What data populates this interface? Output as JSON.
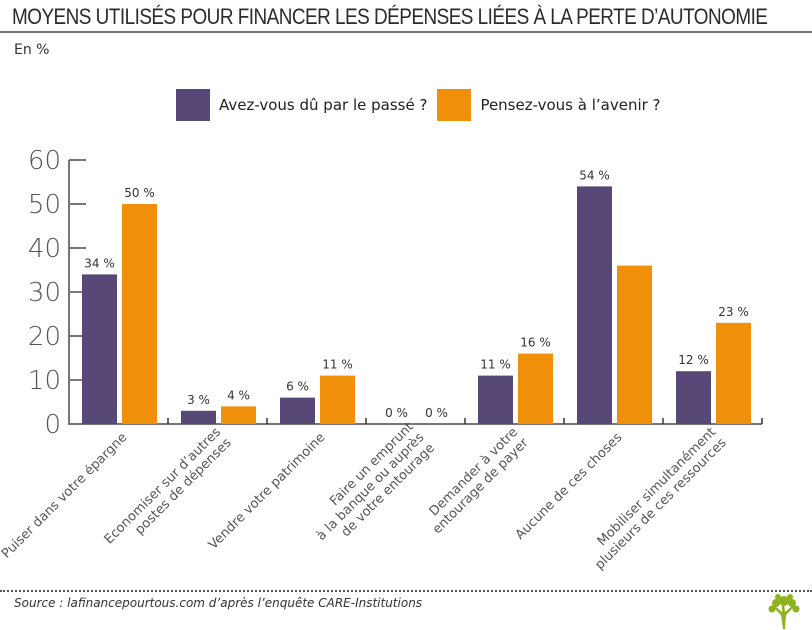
{
  "header": {
    "title": "MOYENS UTILISÉS POUR FINANCER LES DÉPENSES LIÉES À LA PERTE D’AUTONOMIE",
    "unit": "En %"
  },
  "colors": {
    "past": "#574878",
    "future": "#F0900A",
    "axis": "#777777",
    "text": "#333333",
    "logo": "#8DB31E"
  },
  "footer": {
    "source": "Source : lafinancepourtous.com d’après l’enquête CARE-Institutions",
    "logo_icon": "tree-icon"
  },
  "chart_data": {
    "type": "bar",
    "title": "MOYENS UTILISÉS POUR FINANCER LES DÉPENSES LIÉES À LA PERTE D’AUTONOMIE",
    "subtitle": "En %",
    "xlabel": "",
    "ylabel": "En %",
    "ylim": [
      0,
      60
    ],
    "yticks": [
      0,
      10,
      20,
      30,
      40,
      50,
      60
    ],
    "grid": false,
    "legend_position": "top-center",
    "categories": [
      [
        "Puiser dans votre épargne"
      ],
      [
        "Economiser sur d’autres",
        "postes de dépenses"
      ],
      [
        "Vendre votre patrimoine"
      ],
      [
        "Faire un emprunt",
        "à la banque ou auprès",
        "de votre entourage"
      ],
      [
        "Demander à votre",
        "entourage de payer"
      ],
      [
        "Aucune de ces choses"
      ],
      [
        "Mobiliser simultanément",
        "plusieurs de ces ressources"
      ]
    ],
    "series": [
      {
        "name": "Avez-vous dû par le passé ?",
        "values": [
          34,
          3,
          6,
          0,
          11,
          54,
          12
        ],
        "labels": [
          "34 %",
          "3 %",
          "6 %",
          "0 %",
          "11 %",
          "54 %",
          "12 %"
        ]
      },
      {
        "name": "Pensez-vous à l’avenir ?",
        "values": [
          50,
          4,
          11,
          0,
          16,
          36,
          23
        ],
        "labels": [
          "50 %",
          "4 %",
          "11 %",
          "0 %",
          "16 %",
          "",
          "23 %"
        ]
      }
    ]
  }
}
